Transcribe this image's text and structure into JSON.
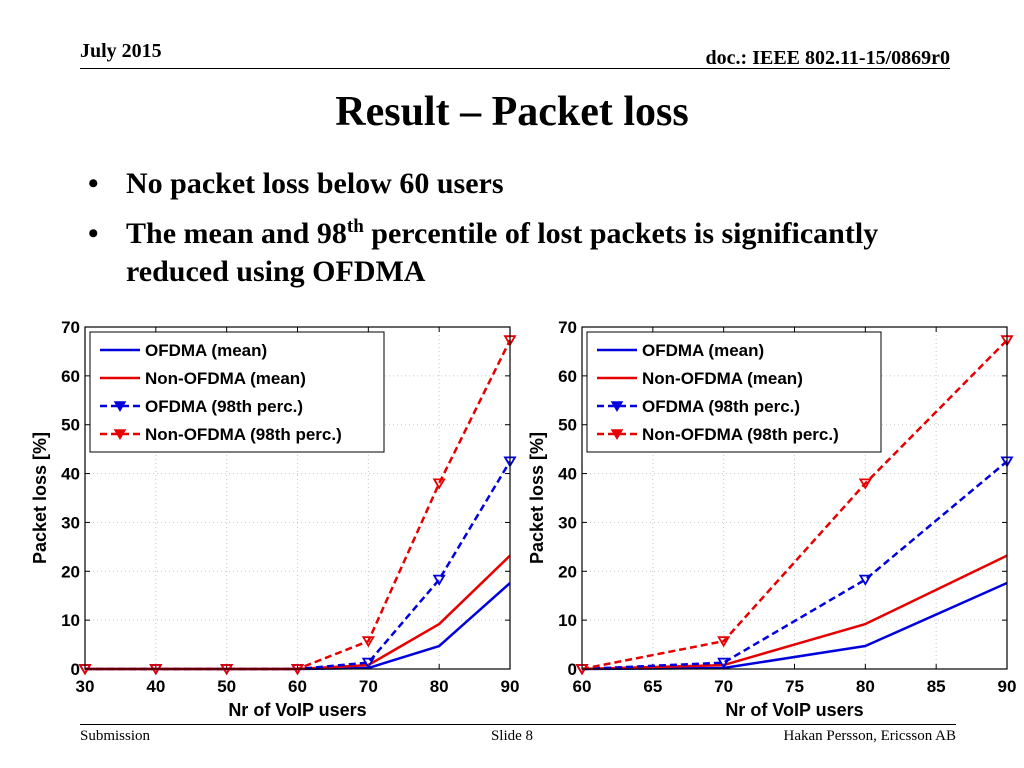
{
  "header": {
    "date": "July 2015",
    "doc": "doc.: IEEE 802.11-15/0869r0"
  },
  "title": "Result – Packet loss",
  "bullets": [
    {
      "text": "No packet loss below 60 users"
    },
    {
      "pre": "The mean and 98",
      "sup": "th",
      "post": " percentile of lost packets is significantly reduced using OFDMA"
    }
  ],
  "colors": {
    "blue": "#0000dd",
    "red": "#e60000",
    "grid": "#c8c8c8"
  },
  "chart_data": [
    {
      "type": "line",
      "xlabel": "Nr of VoIP users",
      "ylabel": "Packet loss [%]",
      "xlim": [
        30,
        90
      ],
      "ylim": [
        0,
        70
      ],
      "xticks": [
        30,
        40,
        50,
        60,
        70,
        80,
        90
      ],
      "yticks": [
        0,
        10,
        20,
        30,
        40,
        50,
        60,
        70
      ],
      "grid": true,
      "legend": "top-left",
      "x": [
        30,
        40,
        50,
        60,
        70,
        80,
        90
      ],
      "series": [
        {
          "name": "OFDMA (mean)",
          "color": "#0000dd",
          "style": "solid",
          "marker": "none",
          "values": [
            0,
            0,
            0,
            0,
            0.2,
            4.7,
            17.6
          ]
        },
        {
          "name": "Non-OFDMA (mean)",
          "color": "#e60000",
          "style": "solid",
          "marker": "none",
          "values": [
            0,
            0,
            0,
            0,
            0.8,
            9.2,
            23.2
          ]
        },
        {
          "name": "OFDMA (98th perc.)",
          "color": "#0000dd",
          "style": "dashed",
          "marker": "triangle-down",
          "values": [
            0,
            0,
            0,
            0,
            1.3,
            18.3,
            42.5
          ]
        },
        {
          "name": "Non-OFDMA (98th perc.)",
          "color": "#e60000",
          "style": "dashed",
          "marker": "triangle-down",
          "values": [
            0,
            0,
            0,
            0,
            5.7,
            38.0,
            67.3
          ]
        }
      ]
    },
    {
      "type": "line",
      "xlabel": "Nr of VoIP users",
      "ylabel": "Packet loss [%]",
      "xlim": [
        60,
        90
      ],
      "ylim": [
        0,
        70
      ],
      "xticks": [
        60,
        65,
        70,
        75,
        80,
        85,
        90
      ],
      "yticks": [
        0,
        10,
        20,
        30,
        40,
        50,
        60,
        70
      ],
      "grid": true,
      "legend": "top-left",
      "x": [
        60,
        70,
        80,
        90
      ],
      "series": [
        {
          "name": "OFDMA (mean)",
          "color": "#0000dd",
          "style": "solid",
          "marker": "none",
          "values": [
            0,
            0.2,
            4.7,
            17.6
          ]
        },
        {
          "name": "Non-OFDMA (mean)",
          "color": "#e60000",
          "style": "solid",
          "marker": "none",
          "values": [
            0,
            0.8,
            9.2,
            23.2
          ]
        },
        {
          "name": "OFDMA (98th perc.)",
          "color": "#0000dd",
          "style": "dashed",
          "marker": "triangle-down",
          "values": [
            0,
            1.3,
            18.3,
            42.5
          ]
        },
        {
          "name": "Non-OFDMA (98th perc.)",
          "color": "#e60000",
          "style": "dashed",
          "marker": "triangle-down",
          "values": [
            0,
            5.7,
            38.0,
            67.3
          ]
        }
      ]
    }
  ],
  "footer": {
    "left": "Submission",
    "center": "Slide 8",
    "right": "Hakan Persson, Ericsson AB"
  }
}
